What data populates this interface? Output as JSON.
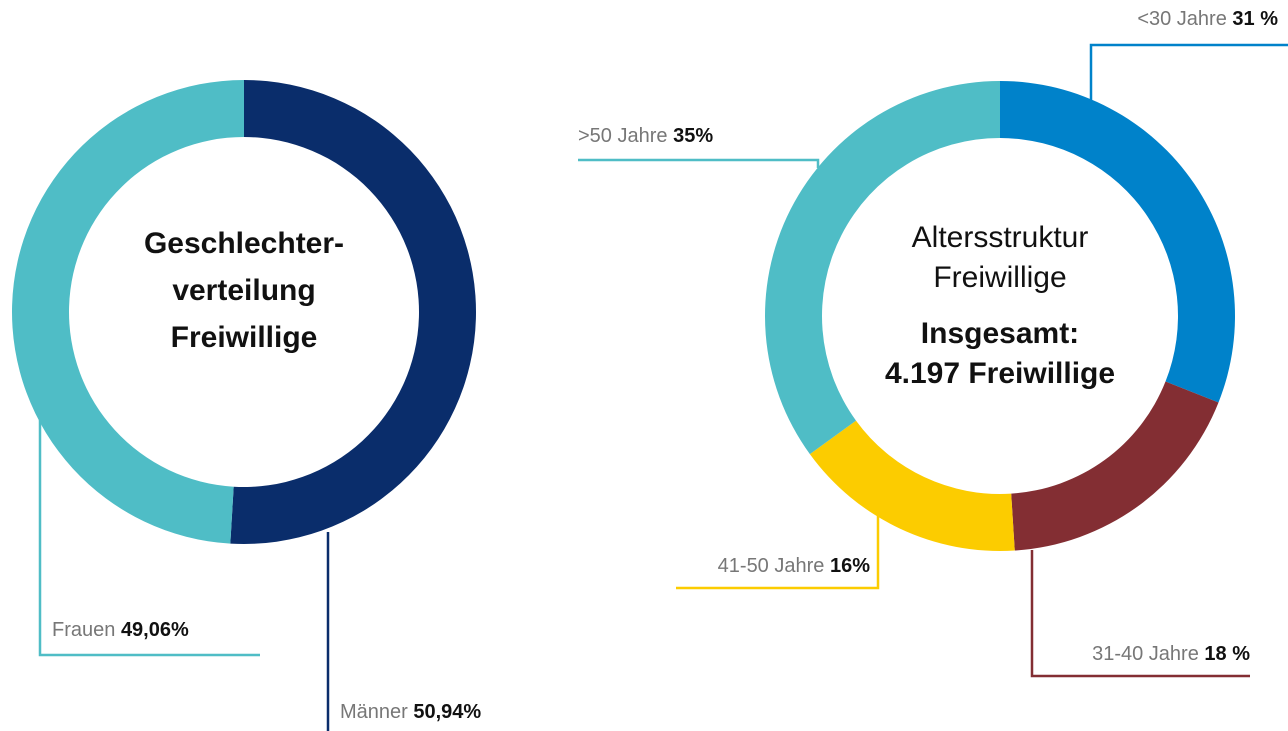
{
  "chart_data": [
    {
      "type": "donut",
      "title": [
        "Geschlechter-",
        "verteilung",
        "Freiwillige"
      ],
      "categories": [
        "Männer",
        "Frauen"
      ],
      "values": [
        50.94,
        49.06
      ],
      "value_labels": [
        "50,94%",
        "49,06%"
      ],
      "colors": [
        "#0a2d6b",
        "#4fbdc6"
      ]
    },
    {
      "type": "donut",
      "title": [
        "Altersstruktur",
        "Freiwillige"
      ],
      "subtitle": [
        "Insgesamt:",
        "4.197 Freiwillige"
      ],
      "categories": [
        "<30 Jahre",
        "31-40 Jahre",
        "41-50 Jahre",
        ">50 Jahre"
      ],
      "values": [
        31,
        18,
        16,
        35
      ],
      "value_labels": [
        "31 %",
        "18 %",
        "16%",
        "35%"
      ],
      "colors": [
        "#0082ca",
        "#832e33",
        "#fccc00",
        "#4fbdc6"
      ]
    }
  ]
}
